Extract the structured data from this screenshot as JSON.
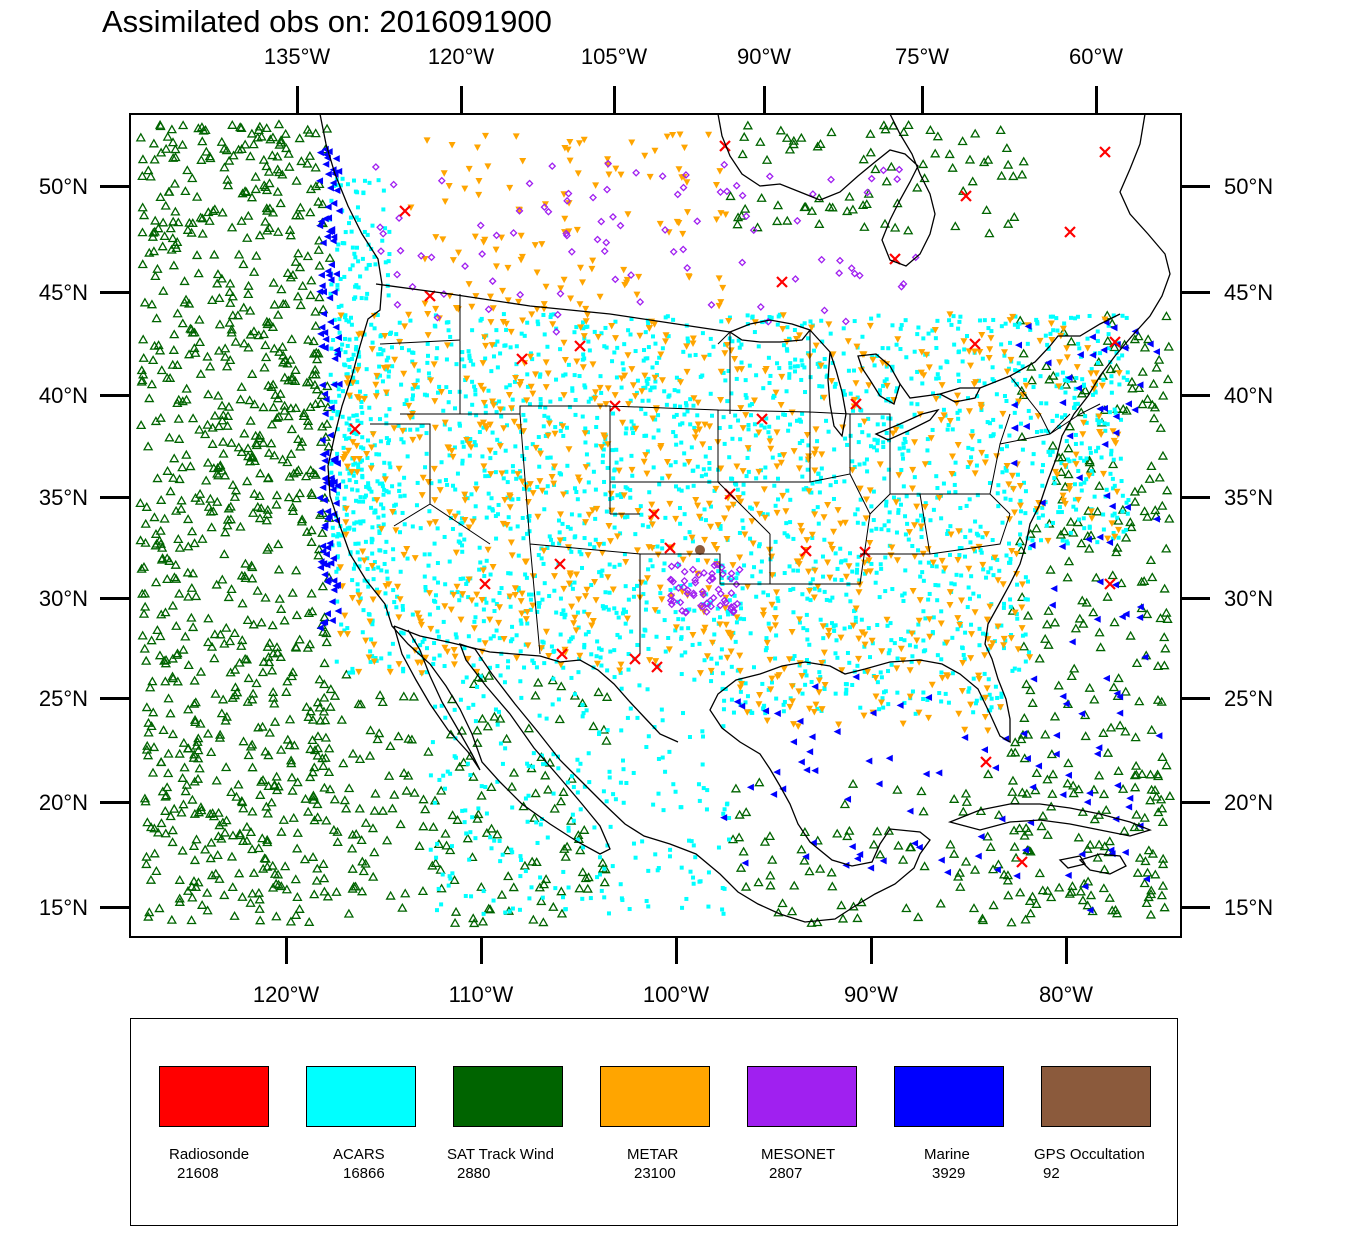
{
  "title": "Assimilated obs on: 2016091900",
  "axes": {
    "top_lon_labels": [
      "135°W",
      "120°W",
      "105°W",
      "90°W",
      "75°W",
      "60°W"
    ],
    "bottom_lon_labels": [
      "120°W",
      "110°W",
      "100°W",
      "90°W",
      "80°W"
    ],
    "left_lat_labels": [
      "50°N",
      "45°N",
      "40°N",
      "35°N",
      "30°N",
      "25°N",
      "20°N",
      "15°N"
    ],
    "right_lat_labels": [
      "50°N",
      "45°N",
      "40°N",
      "35°N",
      "30°N",
      "25°N",
      "20°N",
      "15°N"
    ]
  },
  "map": {
    "region": "Continental United States, Mexico and surrounding ocean",
    "coastline_color": "#000000"
  },
  "legend": {
    "items": [
      {
        "name": "Radiosonde",
        "count": "21608",
        "color": "#ff0000",
        "marker": "x"
      },
      {
        "name": "ACARS",
        "count": "16866",
        "color": "#00ffff",
        "marker": "square"
      },
      {
        "name": "SAT Track Wind",
        "count": "2880",
        "color": "#006400",
        "marker": "triangle-up"
      },
      {
        "name": "METAR",
        "count": "23100",
        "color": "#ffa500",
        "marker": "triangle-down"
      },
      {
        "name": "MESONET",
        "count": "2807",
        "color": "#a020f0",
        "marker": "diamond"
      },
      {
        "name": "Marine",
        "count": "3929",
        "color": "#0000ff",
        "marker": "triangle-left"
      },
      {
        "name": "GPS Occultation",
        "count": "92",
        "color": "#8b5a3c",
        "marker": "circle"
      }
    ]
  }
}
